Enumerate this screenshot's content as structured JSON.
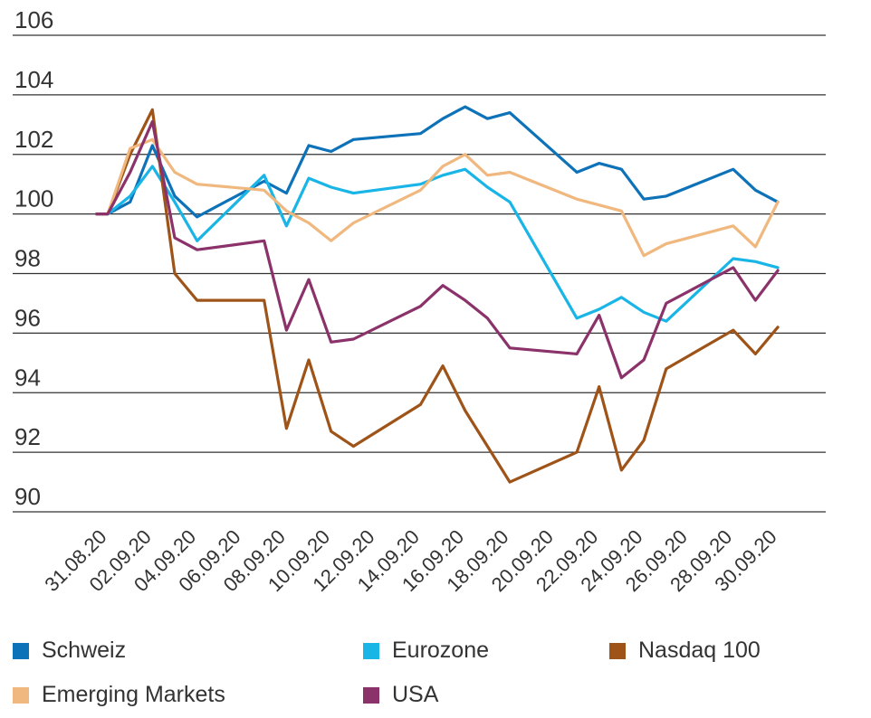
{
  "chart_data": {
    "type": "line",
    "title": "",
    "xlabel": "",
    "ylabel": "",
    "ylim": [
      90,
      106
    ],
    "yticks": [
      90,
      92,
      94,
      96,
      98,
      100,
      102,
      104,
      106
    ],
    "grid": "horizontal",
    "legend_position": "bottom",
    "x": [
      "30.08.20",
      "31.08.20",
      "01.09.20",
      "02.09.20",
      "03.09.20",
      "04.09.20",
      "07.09.20",
      "08.09.20",
      "09.09.20",
      "10.09.20",
      "11.09.20",
      "14.09.20",
      "15.09.20",
      "16.09.20",
      "17.09.20",
      "18.09.20",
      "21.09.20",
      "22.09.20",
      "23.09.20",
      "24.09.20",
      "25.09.20",
      "28.09.20",
      "29.09.20",
      "30.09.20"
    ],
    "x_pos": [
      30.5,
      31,
      32,
      33,
      34,
      35,
      38,
      39,
      40,
      41,
      42,
      45,
      46,
      47,
      48,
      49,
      52,
      53,
      54,
      55,
      56,
      59,
      60,
      61
    ],
    "x_tick_labels": [
      "31.08.20",
      "02.09.20",
      "04.09.20",
      "06.09.20",
      "08.09.20",
      "10.09.20",
      "12.09.20",
      "14.09.20",
      "16.09.20",
      "18.09.20",
      "20.09.20",
      "22.09.20",
      "24.09.20",
      "26.09.20",
      "28.09.20",
      "30.09.20"
    ],
    "x_tick_pos": [
      31,
      33,
      35,
      37,
      39,
      41,
      43,
      45,
      47,
      49,
      51,
      53,
      55,
      57,
      59,
      61
    ],
    "series": [
      {
        "name": "Schweiz",
        "color": "#0d72b8",
        "values": [
          100.0,
          100.0,
          100.4,
          102.3,
          100.6,
          99.9,
          101.1,
          100.7,
          102.3,
          102.1,
          102.5,
          102.7,
          103.2,
          103.6,
          103.2,
          103.4,
          101.4,
          101.7,
          101.5,
          100.5,
          100.6,
          101.5,
          100.8,
          100.4
        ]
      },
      {
        "name": "Eurozone",
        "color": "#19b5e6",
        "values": [
          100.0,
          100.0,
          100.6,
          101.6,
          100.4,
          99.1,
          101.3,
          99.6,
          101.2,
          100.9,
          100.7,
          101.0,
          101.3,
          101.5,
          100.9,
          100.4,
          96.5,
          96.8,
          97.2,
          96.7,
          96.4,
          98.5,
          98.4,
          98.2
        ]
      },
      {
        "name": "Nasdaq 100",
        "color": "#9e5318",
        "values": [
          100.0,
          100.0,
          102.0,
          103.5,
          98.0,
          97.1,
          97.1,
          92.8,
          95.1,
          92.7,
          92.2,
          93.6,
          94.9,
          93.4,
          92.2,
          91.0,
          92.0,
          94.2,
          91.4,
          92.4,
          94.8,
          96.1,
          95.3,
          96.2
        ]
      },
      {
        "name": "Emerging Markets",
        "color": "#f0b87e",
        "values": [
          100.0,
          100.0,
          102.2,
          102.5,
          101.4,
          101.0,
          100.8,
          100.1,
          99.7,
          99.1,
          99.7,
          100.8,
          101.6,
          102.0,
          101.3,
          101.4,
          100.5,
          100.3,
          100.1,
          98.6,
          99.0,
          99.6,
          98.9,
          100.4
        ]
      },
      {
        "name": "USA",
        "color": "#8a3269",
        "values": [
          100.0,
          100.0,
          101.4,
          103.1,
          99.2,
          98.8,
          99.1,
          96.1,
          97.8,
          95.7,
          95.8,
          96.9,
          97.6,
          97.1,
          96.5,
          95.5,
          95.3,
          96.6,
          94.5,
          95.1,
          97.0,
          98.2,
          97.1,
          98.1
        ]
      }
    ]
  },
  "legend": [
    {
      "label": "Schweiz",
      "color": "#0d72b8"
    },
    {
      "label": "Eurozone",
      "color": "#19b5e6"
    },
    {
      "label": "Nasdaq 100",
      "color": "#9e5318"
    },
    {
      "label": "Emerging Markets",
      "color": "#f0b87e"
    },
    {
      "label": "USA",
      "color": "#8a3269"
    }
  ]
}
